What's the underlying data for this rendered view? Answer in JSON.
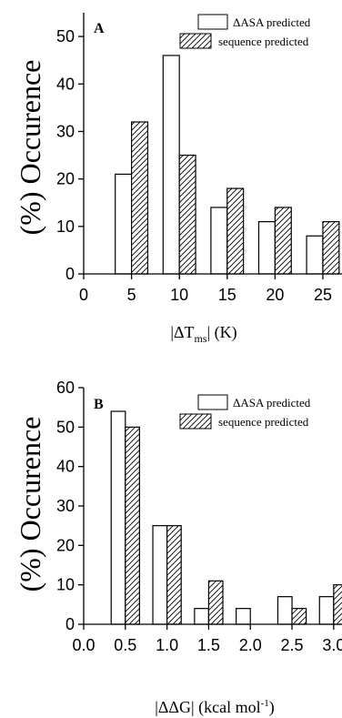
{
  "chart_data": [
    {
      "type": "bar",
      "panel": "A",
      "title": "",
      "xlabel": "|ΔT_ms| (K)",
      "xlabel_main": "|ΔT",
      "xlabel_sub": "ms",
      "xlabel_tail": "| (K)",
      "ylabel": "(%) Occurence",
      "xlim": [
        0,
        27
      ],
      "ylim": [
        0,
        55
      ],
      "x_ticks": [
        0,
        5,
        10,
        15,
        20,
        25
      ],
      "x_tick_labels": [
        "0",
        "5",
        "10",
        "15",
        "20",
        "25"
      ],
      "y_ticks": [
        0,
        10,
        20,
        30,
        40,
        50
      ],
      "y_tick_labels": [
        "0",
        "10",
        "20",
        "30",
        "40",
        "50"
      ],
      "bar_width": 1.7,
      "bin_centers": [
        5,
        10,
        15,
        20,
        25
      ],
      "series": [
        {
          "name": "ΔASA predicted",
          "fill": "open",
          "values": [
            21,
            46,
            14,
            11,
            8
          ]
        },
        {
          "name": "sequence predicted",
          "fill": "hatched",
          "values": [
            32,
            25,
            18,
            14,
            11
          ]
        }
      ],
      "legend_placement": "top-right",
      "grid": false
    },
    {
      "type": "bar",
      "panel": "B",
      "title": "",
      "xlabel": "|ΔΔG| (kcal mol⁻¹)",
      "xlabel_main": "|ΔΔG| (kcal mol",
      "xlabel_sup": "-1",
      "xlabel_tail": ")",
      "ylabel": "(%) Occurence",
      "xlim": [
        0,
        3.1
      ],
      "ylim": [
        0,
        60
      ],
      "x_ticks": [
        0,
        0.5,
        1.0,
        1.5,
        2.0,
        2.5,
        3.0
      ],
      "x_tick_labels": [
        "0.0",
        "0.5",
        "1.0",
        "1.5",
        "2.0",
        "2.5",
        "3.0"
      ],
      "y_ticks": [
        0,
        10,
        20,
        30,
        40,
        50,
        60
      ],
      "y_tick_labels": [
        "0",
        "10",
        "20",
        "30",
        "40",
        "50",
        "60"
      ],
      "bar_width": 0.17,
      "bin_centers": [
        0.5,
        1.0,
        1.5,
        2.0,
        2.5,
        3.0
      ],
      "series": [
        {
          "name": "ΔASA predicted",
          "fill": "open",
          "values": [
            54,
            25,
            4,
            4,
            7,
            7
          ]
        },
        {
          "name": "sequence predicted",
          "fill": "hatched",
          "values": [
            50,
            25,
            11,
            0,
            4,
            10
          ]
        }
      ],
      "legend_placement": "top-right",
      "grid": false
    }
  ]
}
